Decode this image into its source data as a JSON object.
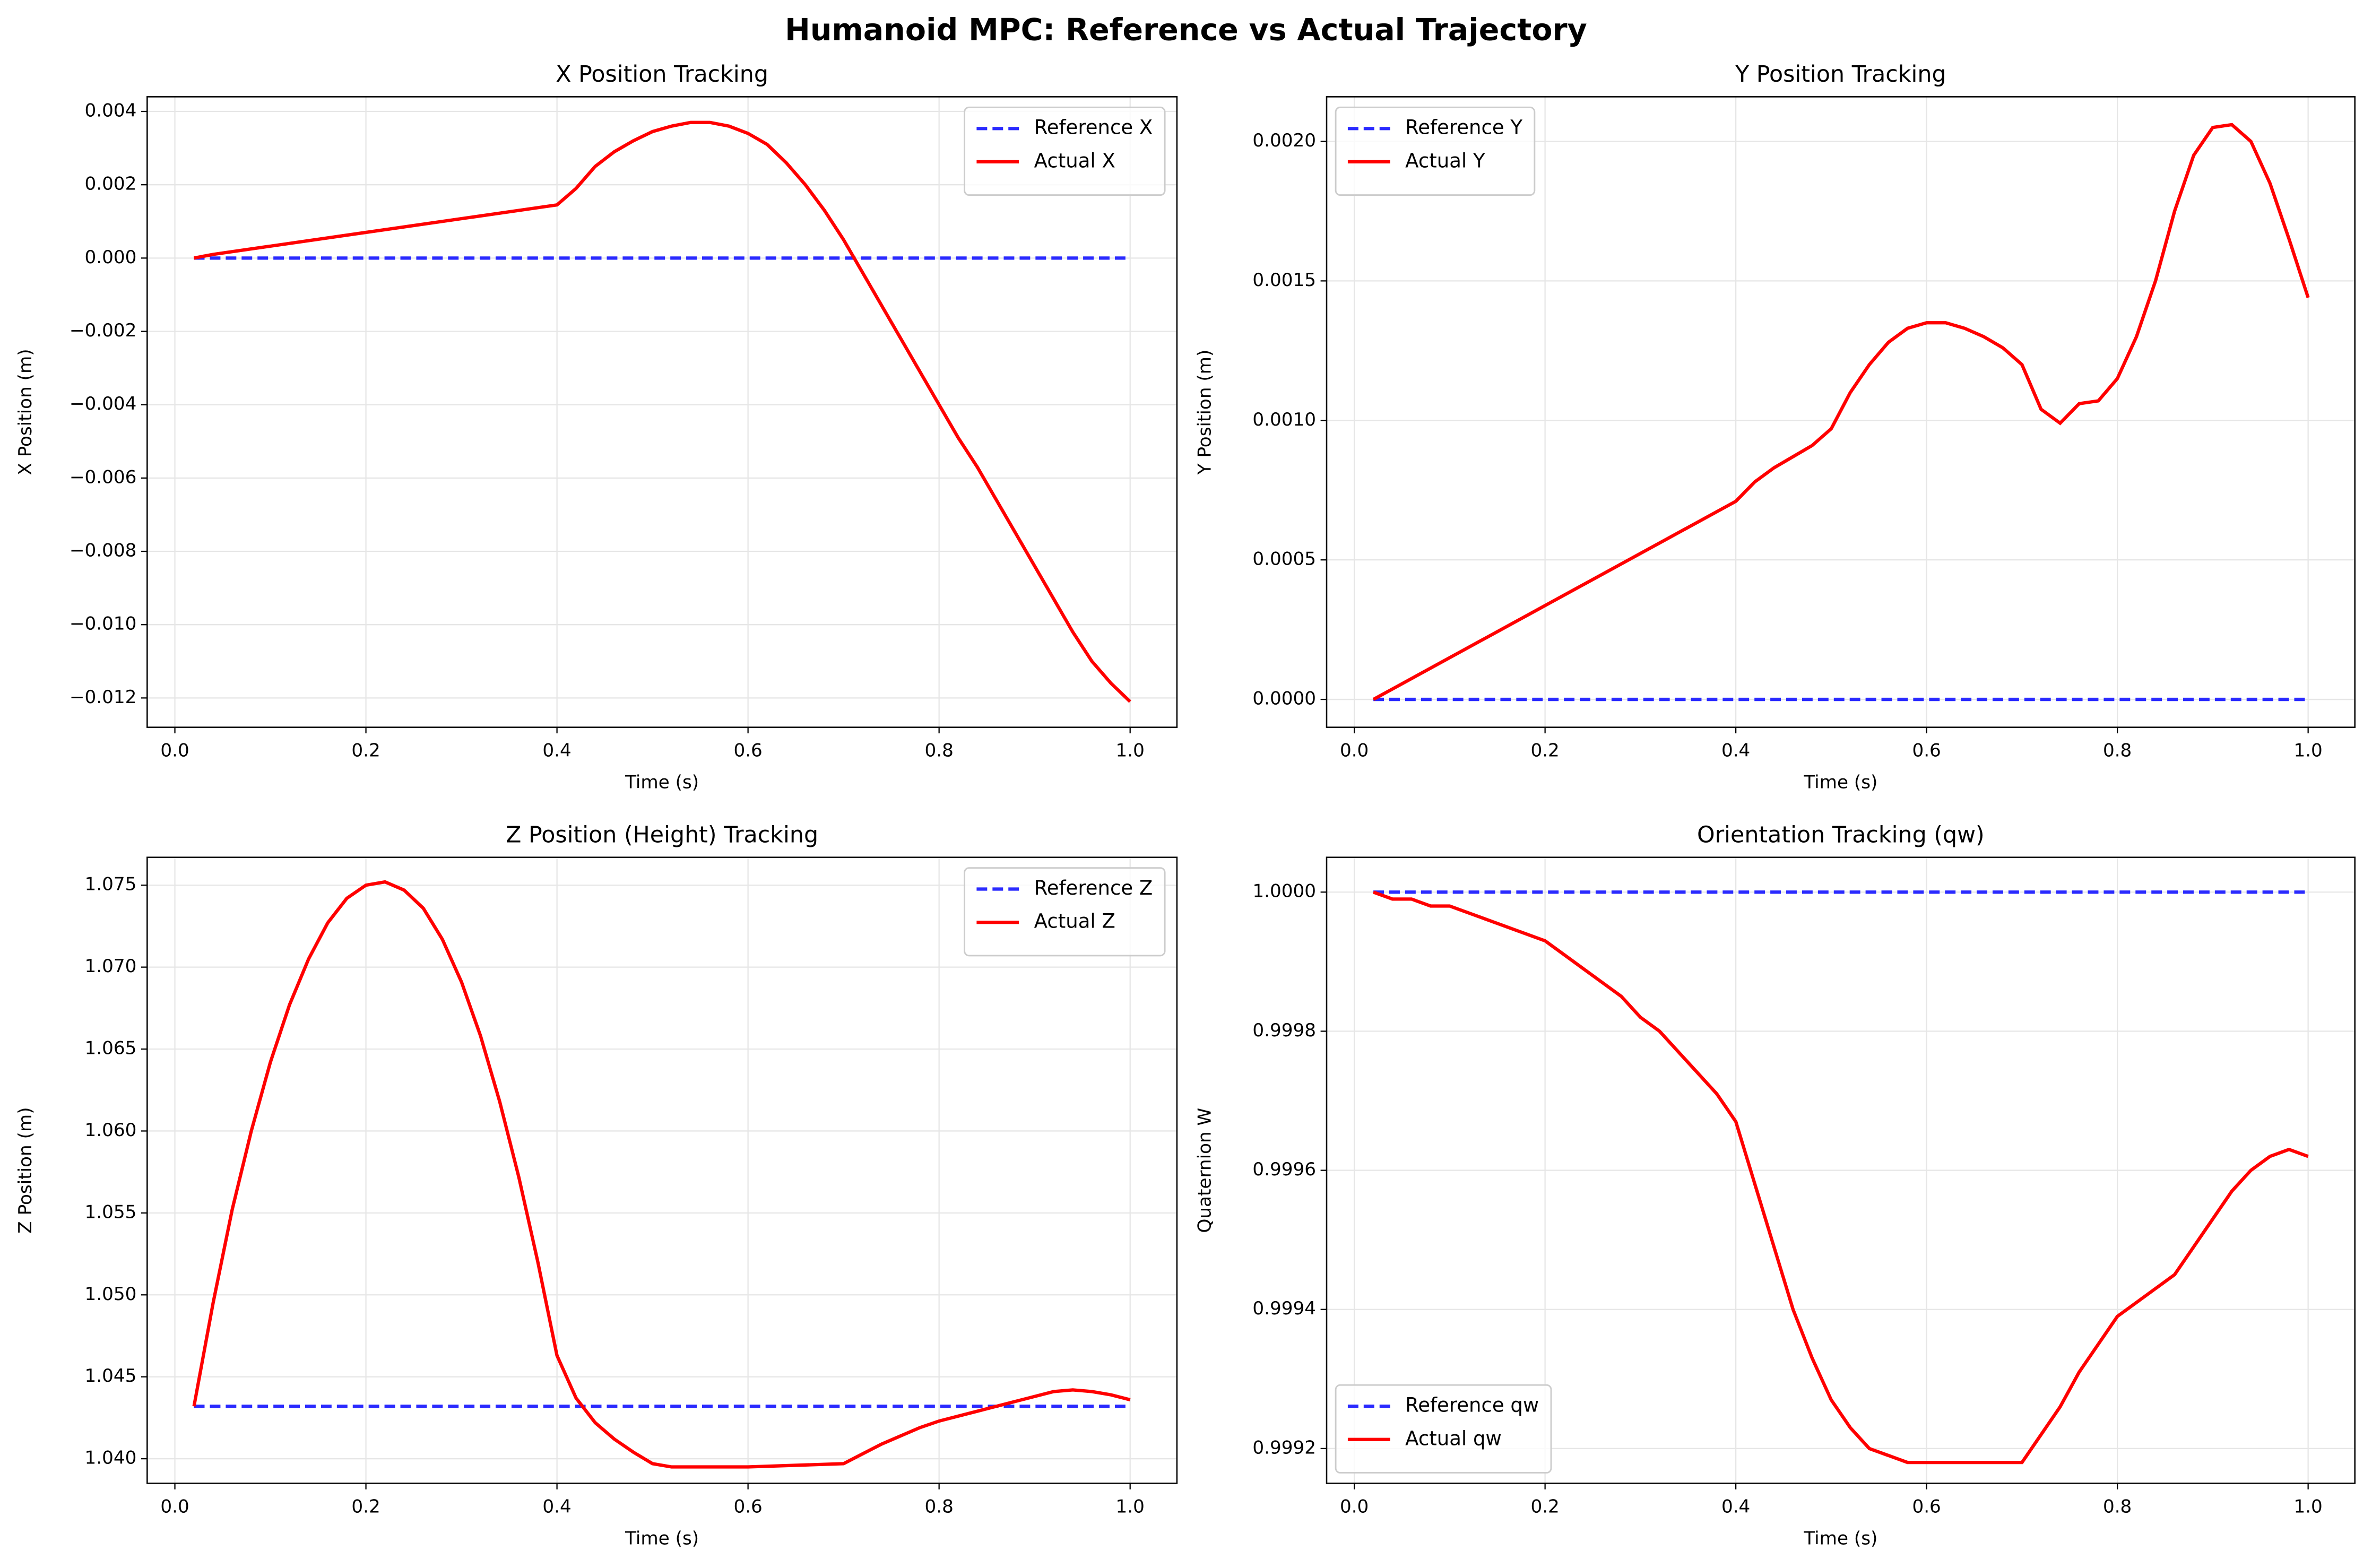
{
  "title": "Humanoid MPC: Reference vs Actual Trajectory",
  "chart_data": [
    {
      "type": "line",
      "title": "X Position Tracking",
      "x_label": "Time (s)",
      "y_label": "X Position (m)",
      "xlim": [
        -0.029,
        1.049
      ],
      "ylim": [
        -0.0128,
        0.0044
      ],
      "xticks": [
        {
          "value": 0.0,
          "label": "0.0"
        },
        0.2,
        0.4,
        0.6,
        0.8,
        {
          "value": 1.0,
          "label": "1.0"
        }
      ],
      "yticks": [
        {
          "value": -0.012,
          "label": "−0.012"
        },
        {
          "value": -0.01,
          "label": "−0.010"
        },
        {
          "value": -0.008,
          "label": "−0.008"
        },
        {
          "value": -0.006,
          "label": "−0.006"
        },
        {
          "value": -0.004,
          "label": "−0.004"
        },
        {
          "value": -0.002,
          "label": "−0.002"
        },
        {
          "value": 0,
          "label": "0.000"
        },
        0.002,
        0.004
      ],
      "grid": true,
      "legend": "upper right",
      "series": [
        {
          "name": "Reference X",
          "color": "#2a2aff",
          "linestyle": "dashed",
          "x": [
            0.02,
            1.0
          ],
          "values": [
            0,
            0
          ]
        },
        {
          "name": "Actual X",
          "color": "#ff0000",
          "linestyle": "solid",
          "x": [
            0.02,
            0.04,
            0.4,
            0.42,
            0.44,
            0.46,
            0.48,
            0.5,
            0.52,
            0.54,
            0.56,
            0.58,
            0.6,
            0.62,
            0.64,
            0.66,
            0.68,
            0.7,
            0.72,
            0.74,
            0.76,
            0.78,
            0.8,
            0.82,
            0.84,
            0.86,
            0.88,
            0.9,
            0.92,
            0.94,
            0.96,
            0.98,
            1.0
          ],
          "values": [
            0,
            0.0001,
            0.00145,
            0.0019,
            0.0025,
            0.0029,
            0.0032,
            0.00345,
            0.0036,
            0.0037,
            0.0037,
            0.0036,
            0.0034,
            0.0031,
            0.0026,
            0.002,
            0.0013,
            0.0005,
            -0.0004,
            -0.0013,
            -0.0022,
            -0.0031,
            -0.004,
            -0.0049,
            -0.0057,
            -0.0066,
            -0.0075,
            -0.0084,
            -0.0093,
            -0.0102,
            -0.011,
            -0.0116,
            -0.0121
          ]
        }
      ]
    },
    {
      "type": "line",
      "title": "Y Position Tracking",
      "x_label": "Time (s)",
      "y_label": "Y Position (m)",
      "xlim": [
        -0.029,
        1.049
      ],
      "ylim": [
        -0.0001,
        0.00216
      ],
      "xticks": [
        {
          "value": 0.0,
          "label": "0.0"
        },
        0.2,
        0.4,
        0.6,
        0.8,
        {
          "value": 1.0,
          "label": "1.0"
        }
      ],
      "yticks": [
        {
          "value": 0,
          "label": "0.0000"
        },
        {
          "value": 0.0005,
          "label": "0.0005"
        },
        {
          "value": 0.001,
          "label": "0.0010"
        },
        {
          "value": 0.0015,
          "label": "0.0015"
        },
        {
          "value": 0.002,
          "label": "0.0020"
        }
      ],
      "grid": true,
      "legend": "upper left",
      "series": [
        {
          "name": "Reference Y",
          "color": "#2a2aff",
          "linestyle": "dashed",
          "x": [
            0.02,
            1.0
          ],
          "values": [
            0,
            0
          ]
        },
        {
          "name": "Actual Y",
          "color": "#ff0000",
          "linestyle": "solid",
          "x": [
            0.02,
            0.4,
            0.42,
            0.44,
            0.46,
            0.48,
            0.5,
            0.52,
            0.54,
            0.56,
            0.58,
            0.6,
            0.62,
            0.64,
            0.66,
            0.68,
            0.7,
            0.72,
            0.74,
            0.76,
            0.78,
            0.8,
            0.82,
            0.84,
            0.86,
            0.88,
            0.9,
            0.92,
            0.94,
            0.96,
            0.98,
            1.0
          ],
          "values": [
            0,
            0.00071,
            0.00078,
            0.00083,
            0.00087,
            0.00091,
            0.00097,
            0.0011,
            0.0012,
            0.00128,
            0.00133,
            0.00135,
            0.00135,
            0.00133,
            0.0013,
            0.00126,
            0.0012,
            0.00104,
            0.00099,
            0.00106,
            0.00107,
            0.00115,
            0.0013,
            0.0015,
            0.00175,
            0.00195,
            0.00205,
            0.00206,
            0.002,
            0.00185,
            0.00165,
            0.00144
          ]
        }
      ]
    },
    {
      "type": "line",
      "title": "Z Position (Height) Tracking",
      "x_label": "Time (s)",
      "y_label": "Z Position (m)",
      "xlim": [
        -0.029,
        1.049
      ],
      "ylim": [
        1.0385,
        1.0767
      ],
      "xticks": [
        {
          "value": 0.0,
          "label": "0.0"
        },
        0.2,
        0.4,
        0.6,
        0.8,
        {
          "value": 1.0,
          "label": "1.0"
        }
      ],
      "yticks": [
        {
          "value": 1.04,
          "label": "1.040"
        },
        1.045,
        {
          "value": 1.05,
          "label": "1.050"
        },
        1.055,
        {
          "value": 1.06,
          "label": "1.060"
        },
        1.065,
        {
          "value": 1.07,
          "label": "1.070"
        },
        1.075
      ],
      "grid": true,
      "legend": "upper right",
      "series": [
        {
          "name": "Reference Z",
          "color": "#2a2aff",
          "linestyle": "dashed",
          "x": [
            0.02,
            1.0
          ],
          "values": [
            1.0432,
            1.0432
          ]
        },
        {
          "name": "Actual Z",
          "color": "#ff0000",
          "linestyle": "solid",
          "x": [
            0.02,
            0.04,
            0.06,
            0.08,
            0.1,
            0.12,
            0.14,
            0.16,
            0.18,
            0.2,
            0.22,
            0.24,
            0.26,
            0.28,
            0.3,
            0.32,
            0.34,
            0.36,
            0.38,
            0.4,
            0.42,
            0.44,
            0.46,
            0.48,
            0.5,
            0.52,
            0.6,
            0.7,
            0.72,
            0.74,
            0.76,
            0.78,
            0.8,
            0.82,
            0.84,
            0.86,
            0.88,
            0.9,
            0.92,
            0.94,
            0.96,
            0.98,
            1.0
          ],
          "values": [
            1.0432,
            1.0495,
            1.0552,
            1.06,
            1.0642,
            1.0677,
            1.0705,
            1.0727,
            1.0742,
            1.075,
            1.0752,
            1.0747,
            1.0736,
            1.0717,
            1.0691,
            1.0658,
            1.0618,
            1.0572,
            1.052,
            1.0463,
            1.0437,
            1.0422,
            1.0412,
            1.0404,
            1.0397,
            1.0395,
            1.0395,
            1.0397,
            1.0403,
            1.0409,
            1.0414,
            1.0419,
            1.0423,
            1.0426,
            1.0429,
            1.0432,
            1.0435,
            1.0438,
            1.0441,
            1.0442,
            1.0441,
            1.0439,
            1.0436
          ]
        }
      ]
    },
    {
      "type": "line",
      "title": "Orientation Tracking (qw)",
      "x_label": "Time (s)",
      "y_label": "Quaternion W",
      "xlim": [
        -0.029,
        1.049
      ],
      "ylim": [
        0.99915,
        1.00005
      ],
      "xticks": [
        {
          "value": 0.0,
          "label": "0.0"
        },
        0.2,
        0.4,
        0.6,
        0.8,
        {
          "value": 1.0,
          "label": "1.0"
        }
      ],
      "yticks": [
        0.9992,
        0.9994,
        0.9996,
        0.9998,
        {
          "value": 1.0,
          "label": "1.0000"
        }
      ],
      "grid": true,
      "legend": "lower left",
      "series": [
        {
          "name": "Reference qw",
          "color": "#2a2aff",
          "linestyle": "dashed",
          "x": [
            0.02,
            1.0
          ],
          "values": [
            1.0,
            1.0
          ]
        },
        {
          "name": "Actual qw",
          "color": "#ff0000",
          "linestyle": "solid",
          "x": [
            0.02,
            0.04,
            0.06,
            0.08,
            0.1,
            0.12,
            0.14,
            0.16,
            0.18,
            0.2,
            0.22,
            0.24,
            0.26,
            0.28,
            0.3,
            0.32,
            0.34,
            0.36,
            0.38,
            0.4,
            0.42,
            0.44,
            0.46,
            0.48,
            0.5,
            0.52,
            0.54,
            0.56,
            0.58,
            0.6,
            0.62,
            0.64,
            0.66,
            0.68,
            0.7,
            0.72,
            0.74,
            0.76,
            0.78,
            0.8,
            0.82,
            0.84,
            0.86,
            0.88,
            0.9,
            0.92,
            0.94,
            0.96,
            0.98,
            1.0
          ],
          "values": [
            1.0,
            0.99999,
            0.99999,
            0.99998,
            0.99998,
            0.99997,
            0.99996,
            0.99995,
            0.99994,
            0.99993,
            0.99991,
            0.99989,
            0.99987,
            0.99985,
            0.99982,
            0.9998,
            0.99977,
            0.99974,
            0.99971,
            0.99967,
            0.99958,
            0.99949,
            0.9994,
            0.99933,
            0.99927,
            0.99923,
            0.9992,
            0.99919,
            0.99918,
            0.99918,
            0.99918,
            0.99918,
            0.99918,
            0.99918,
            0.99918,
            0.99922,
            0.99926,
            0.99931,
            0.99935,
            0.99939,
            0.99941,
            0.99943,
            0.99945,
            0.99949,
            0.99953,
            0.99957,
            0.9996,
            0.99962,
            0.99963,
            0.99962
          ]
        }
      ]
    }
  ]
}
